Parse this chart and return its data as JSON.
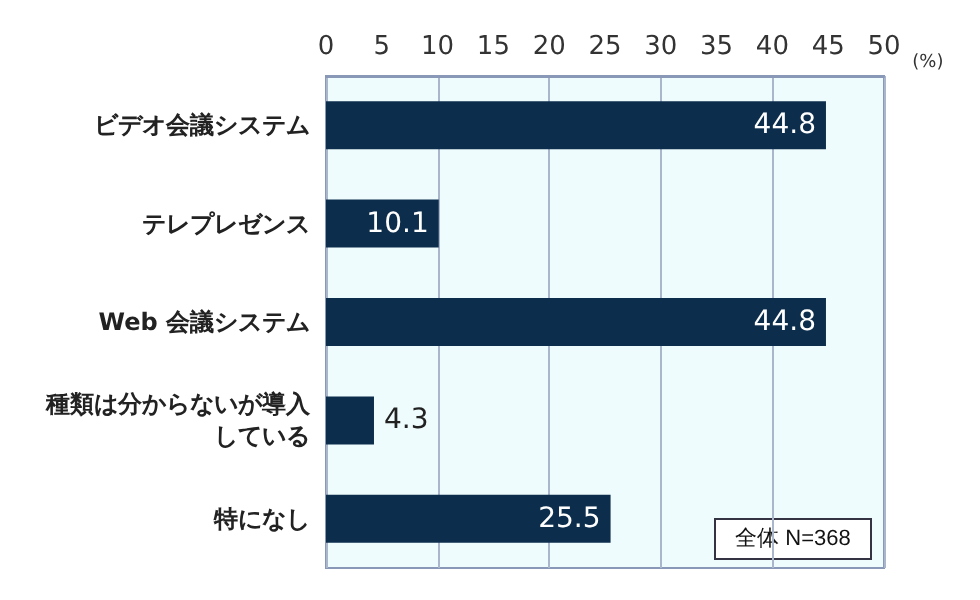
{
  "chart_data": {
    "type": "bar",
    "orientation": "horizontal",
    "categories": [
      "ビデオ会議システム",
      "テレプレゼンス",
      "Web 会議システム",
      "種類は分からないが導入している",
      "特になし"
    ],
    "values": [
      44.8,
      10.1,
      44.8,
      4.3,
      25.5
    ],
    "color": "#0c2d4c",
    "xlim": [
      0,
      50
    ],
    "xticks": [
      0,
      5,
      10,
      15,
      20,
      25,
      30,
      35,
      40,
      45,
      50
    ],
    "xlabel": "(%)",
    "grid": "x",
    "data_labels": true,
    "annotations": [
      "全体 N=368"
    ]
  }
}
